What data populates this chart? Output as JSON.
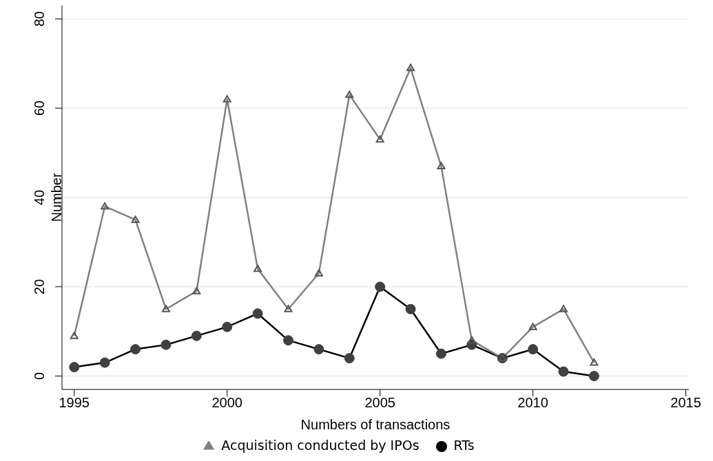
{
  "chart_data": {
    "type": "line",
    "xlabel": "Numbers of transactions",
    "ylabel": "Number",
    "x": [
      1995,
      1996,
      1997,
      1998,
      1999,
      2000,
      2001,
      2002,
      2003,
      2004,
      2005,
      2006,
      2007,
      2008,
      2009,
      2010,
      2011,
      2012
    ],
    "series": [
      {
        "name": "RTs",
        "color": "#000000",
        "marker": "circle",
        "values": [
          2,
          3,
          6,
          7,
          9,
          11,
          14,
          8,
          6,
          4,
          20,
          15,
          5,
          7,
          4,
          6,
          1,
          0
        ]
      },
      {
        "name": "Acquisition conducted by IPOs",
        "color": "#808080",
        "marker": "triangle",
        "values": [
          9,
          38,
          35,
          15,
          19,
          62,
          24,
          15,
          23,
          63,
          53,
          69,
          47,
          8,
          4,
          11,
          15,
          3
        ]
      }
    ],
    "xlim": [
      1994.6,
      2015.1
    ],
    "xticks": [
      1995,
      2000,
      2005,
      2010,
      2015
    ],
    "ylim": [
      -3,
      83
    ],
    "yticks": [
      0,
      20,
      40,
      60,
      80
    ],
    "grid": "y",
    "legend": "bottom"
  }
}
